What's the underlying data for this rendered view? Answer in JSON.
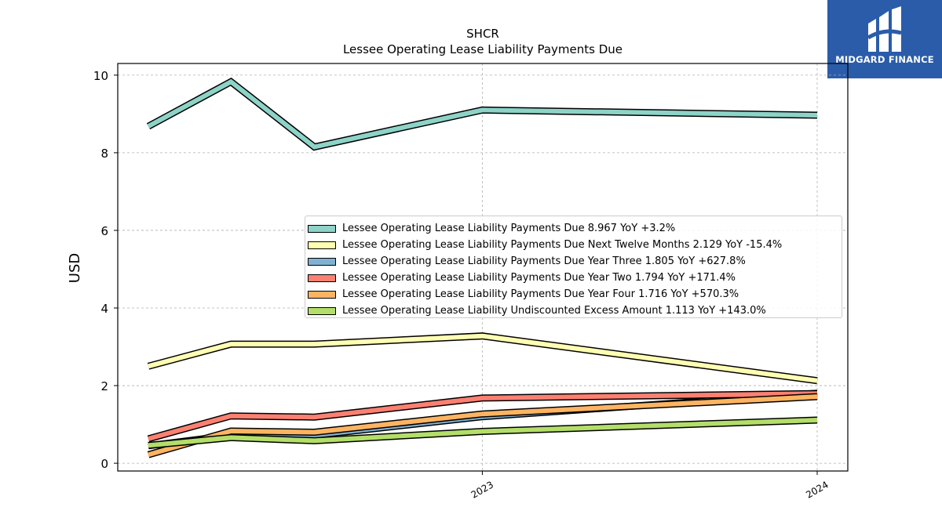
{
  "brand": {
    "logo_text": "MIDGARD FINANCE",
    "logo_color": "#2a5caa"
  },
  "chart_data": {
    "type": "line",
    "title": "SHCR",
    "subtitle": "Lessee Operating Lease Liability Payments Due",
    "ylabel": "USD",
    "xlabel": "",
    "ylim": [
      -0.2,
      10.3
    ],
    "yticks": [
      0,
      2,
      4,
      6,
      8,
      10
    ],
    "x": [
      "2022-01-01",
      "2022-04-01",
      "2022-07-01",
      "2022-12-31",
      "2023-12-31"
    ],
    "xticks": [
      "2023",
      "2024"
    ],
    "grid": true,
    "legend_position": "center-right",
    "series": [
      {
        "name": "Lessee Operating Lease Liability Payments Due",
        "legend": "Lessee Operating Lease Liability Payments Due  8.967 YoY +3.2%",
        "color": "#8dd3c7",
        "values": [
          8.68,
          9.83,
          8.15,
          9.1,
          8.967
        ]
      },
      {
        "name": "Lessee Operating Lease Liability Payments Due Next Twelve Months",
        "legend": "Lessee Operating Lease Liability Payments Due Next Twelve Months  2.129 YoY -15.4%",
        "color": "#ffffb3",
        "values": [
          2.5,
          3.07,
          3.07,
          3.28,
          2.129
        ]
      },
      {
        "name": "Lessee Operating Lease Liability Payments Due Year Three",
        "legend": "Lessee Operating Lease Liability Payments Due Year Three  1.805 YoY +627.8%",
        "color": "#80b1d3",
        "values": [
          0.45,
          0.72,
          0.72,
          1.2,
          1.805
        ]
      },
      {
        "name": "Lessee Operating Lease Liability Payments Due Year Two",
        "legend": "Lessee Operating Lease Liability Payments Due Year Two  1.794 YoY +171.4%",
        "color": "#fb8072",
        "values": [
          0.63,
          1.22,
          1.19,
          1.68,
          1.794
        ]
      },
      {
        "name": "Lessee Operating Lease Liability Payments Due Year Four",
        "legend": "Lessee Operating Lease Liability Payments Due Year Four  1.716 YoY +570.3%",
        "color": "#fdb462",
        "values": [
          0.22,
          0.83,
          0.8,
          1.27,
          1.716
        ]
      },
      {
        "name": "Lessee Operating Lease Liability Undiscounted Excess Amount",
        "legend": "Lessee Operating Lease Liability Undiscounted Excess Amount  1.113 YoY +143.0%",
        "color": "#b3de69",
        "values": [
          0.46,
          0.66,
          0.58,
          0.82,
          1.113
        ]
      }
    ]
  }
}
